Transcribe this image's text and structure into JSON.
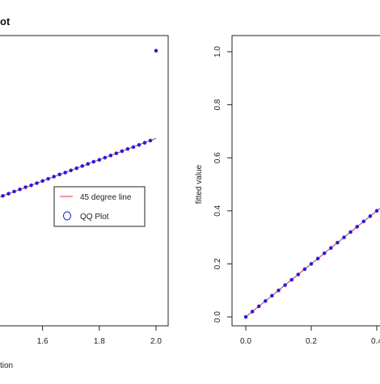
{
  "page_title_fragment": "ot",
  "chart_data": [
    {
      "type": "scatter",
      "title": "",
      "xlabel": "tion",
      "ylabel": "",
      "xlim": [
        1.45,
        2.02
      ],
      "ylim": [
        0.0,
        1.04
      ],
      "x_ticks": [
        "1.6",
        "1.8",
        "2.0"
      ],
      "x_tick_values": [
        1.6,
        1.8,
        2.0
      ],
      "grid": false,
      "legend_placement": "center-right",
      "legend": {
        "line_label": "45 degree line",
        "points_label": "QQ Plot"
      },
      "colors": {
        "line": "#e0303a",
        "points": "#1c1cd6",
        "axis": "#222222"
      },
      "series": [
        {
          "name": "45 degree line",
          "kind": "line",
          "x": [
            1.45,
            2.0
          ],
          "y": [
            0.44,
            0.656
          ]
        },
        {
          "name": "QQ Plot",
          "kind": "points",
          "x": [
            1.46,
            1.48,
            1.5,
            1.52,
            1.54,
            1.56,
            1.58,
            1.6,
            1.62,
            1.64,
            1.66,
            1.68,
            1.7,
            1.72,
            1.74,
            1.76,
            1.78,
            1.8,
            1.82,
            1.84,
            1.86,
            1.88,
            1.9,
            1.92,
            1.94,
            1.96,
            1.98,
            2.0
          ],
          "y": [
            0.444,
            0.452,
            0.46,
            0.468,
            0.476,
            0.483,
            0.491,
            0.499,
            0.507,
            0.515,
            0.523,
            0.53,
            0.538,
            0.546,
            0.554,
            0.562,
            0.57,
            0.577,
            0.585,
            0.593,
            0.601,
            0.609,
            0.617,
            0.624,
            0.632,
            0.64,
            0.648,
            0.98
          ]
        }
      ]
    },
    {
      "type": "scatter",
      "title": "",
      "xlabel": "",
      "ylabel": "fitted value",
      "xlim": [
        0.0,
        0.41
      ],
      "ylim": [
        0.0,
        1.0
      ],
      "x_ticks": [
        "0.0",
        "0.2",
        "0.4"
      ],
      "x_tick_values": [
        0.0,
        0.2,
        0.4
      ],
      "y_ticks": [
        "0.0",
        "0.2",
        "0.4",
        "0.6",
        "0.8",
        "1.0"
      ],
      "y_tick_values": [
        0.0,
        0.2,
        0.4,
        0.6,
        0.8,
        1.0
      ],
      "grid": false,
      "colors": {
        "line": "#e0303a",
        "points": "#1c1cd6",
        "axis": "#222222"
      },
      "series": [
        {
          "name": "",
          "kind": "line",
          "x": [
            0.0,
            0.41
          ],
          "y": [
            0.0,
            0.41
          ]
        },
        {
          "name": "",
          "kind": "points",
          "x": [
            0.0,
            0.02,
            0.04,
            0.06,
            0.08,
            0.1,
            0.12,
            0.14,
            0.16,
            0.18,
            0.2,
            0.22,
            0.24,
            0.26,
            0.28,
            0.3,
            0.32,
            0.34,
            0.36,
            0.38,
            0.4
          ],
          "y": [
            0.0,
            0.02,
            0.04,
            0.06,
            0.08,
            0.1,
            0.12,
            0.14,
            0.16,
            0.18,
            0.2,
            0.22,
            0.24,
            0.26,
            0.28,
            0.3,
            0.32,
            0.34,
            0.36,
            0.38,
            0.4
          ]
        }
      ]
    }
  ]
}
